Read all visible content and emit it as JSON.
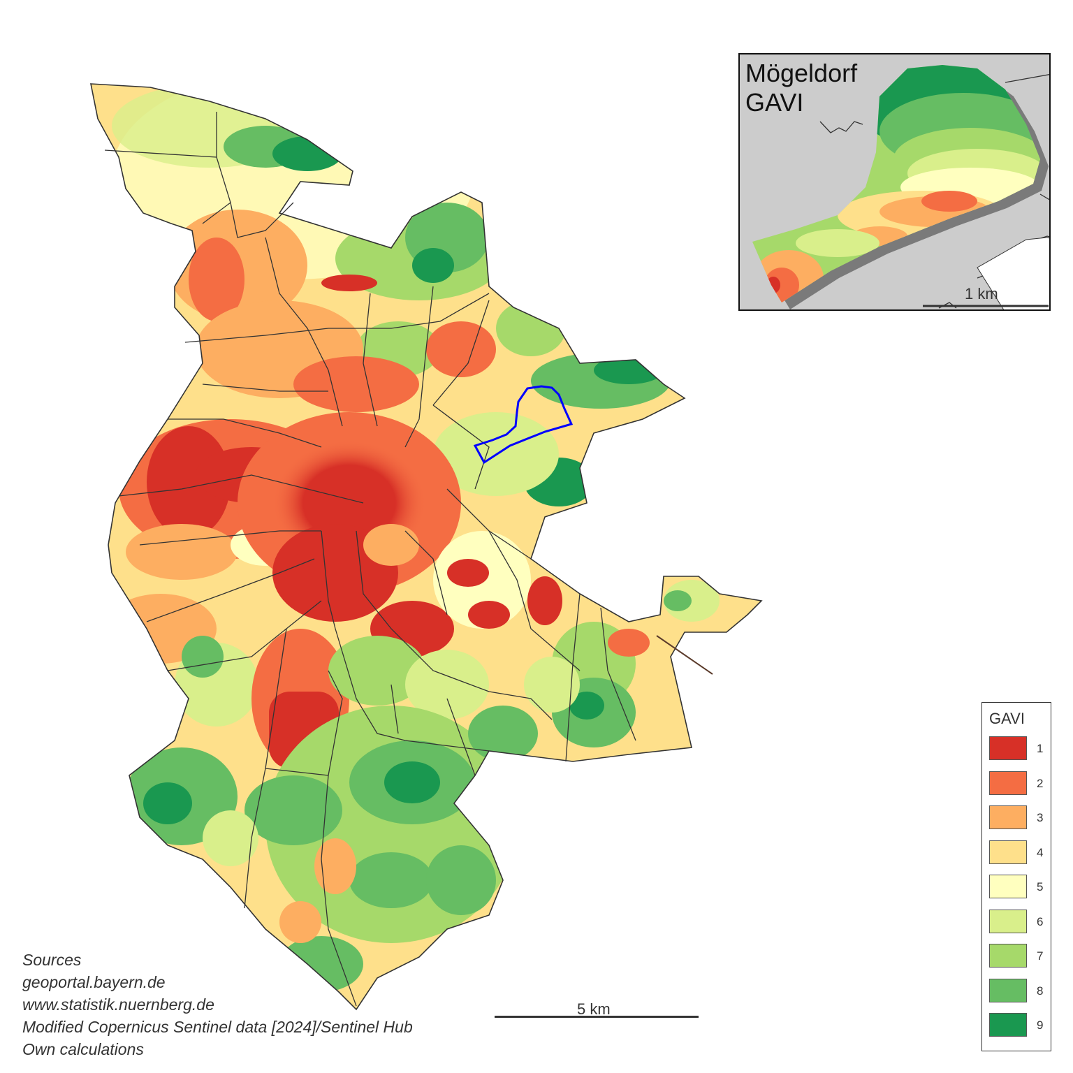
{
  "inset": {
    "title_line1": "Mögeldorf",
    "title_line2": "GAVI",
    "scale_label": "1 km"
  },
  "legend": {
    "title": "GAVI",
    "classes": [
      {
        "label": "1",
        "color": "#d73027"
      },
      {
        "label": "2",
        "color": "#f46d43"
      },
      {
        "label": "3",
        "color": "#fdae61"
      },
      {
        "label": "4",
        "color": "#fee08b"
      },
      {
        "label": "5",
        "color": "#ffffbf"
      },
      {
        "label": "6",
        "color": "#d9ef8b"
      },
      {
        "label": "7",
        "color": "#a6d96a"
      },
      {
        "label": "8",
        "color": "#66bd63"
      },
      {
        "label": "9",
        "color": "#1a9850"
      }
    ]
  },
  "sources": {
    "heading": "Sources",
    "lines": [
      "geoportal.bayern.de",
      "www.statistik.nuernberg.de",
      "Modified Copernicus Sentinel data [2024]/Sentinel Hub",
      "Own calculations"
    ]
  },
  "scalebar": {
    "label": "5 km"
  },
  "highlight": {
    "district": "Mögeldorf",
    "outline_color": "#0000ff"
  },
  "colors": {
    "boundary": "#333333",
    "inset_background": "#cccccc"
  }
}
